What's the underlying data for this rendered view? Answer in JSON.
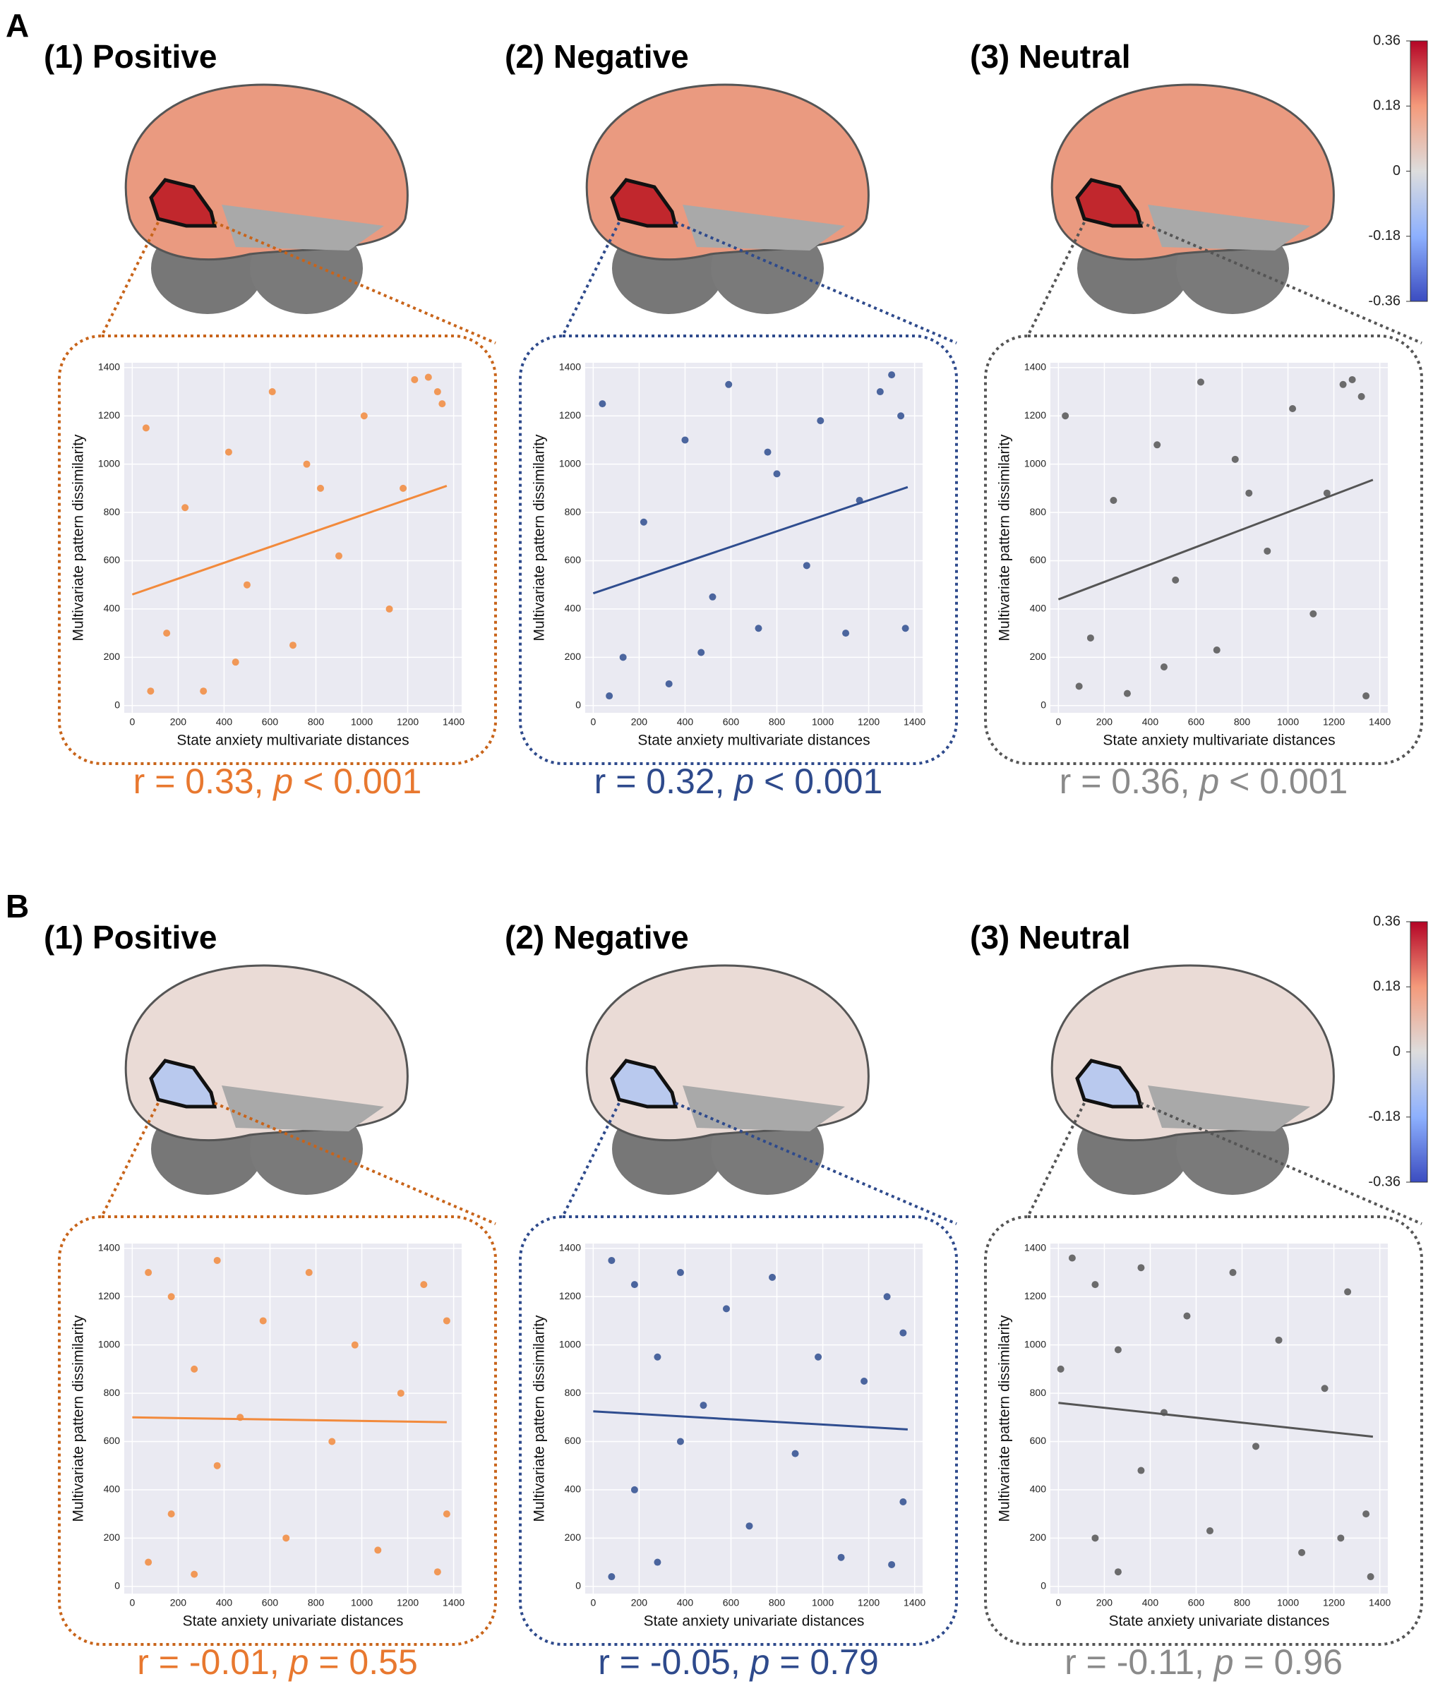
{
  "panels": [
    {
      "label": "A",
      "brain_color": "#ea9a80",
      "roi_color": "#c1272d",
      "colorbar": {
        "ylim": [
          -0.36,
          0.36
        ],
        "ticks": [
          0.36,
          0.18,
          0,
          -0.18,
          -0.36
        ]
      },
      "charts": [
        {
          "type": "scatter",
          "title": "(1) Positive",
          "xlabel": "State anxiety multivariate distances",
          "ylabel": "Multivariate pattern dissimilarity",
          "color": "#f28a3c",
          "frame_color": "#c8641a",
          "stat_color": "#e8782f",
          "stat": {
            "r": "r = 0.33, ",
            "p": "p",
            "rest": " < 0.001"
          },
          "xlim": [
            -35,
            1435
          ],
          "ylim": [
            -30,
            1420
          ],
          "xticks": [
            0,
            200,
            400,
            600,
            800,
            1000,
            1200,
            1400
          ],
          "yticks": [
            0,
            200,
            400,
            600,
            800,
            1000,
            1200,
            1400
          ],
          "x": [
            60,
            150,
            230,
            310,
            420,
            500,
            610,
            700,
            820,
            900,
            1010,
            1120,
            1230,
            1330,
            1350,
            80,
            450,
            760,
            1180,
            1290
          ],
          "y": [
            1150,
            300,
            820,
            60,
            1050,
            500,
            1300,
            250,
            900,
            620,
            1200,
            400,
            1350,
            1300,
            1250,
            60,
            180,
            1000,
            900,
            1360
          ],
          "fit": {
            "x": [
              0,
              1370
            ],
            "y": [
              460,
              910
            ]
          }
        },
        {
          "type": "scatter",
          "title": "(2) Negative",
          "xlabel": "State anxiety multivariate distances",
          "ylabel": "Multivariate pattern dissimilarity",
          "color": "#2f4d8f",
          "frame_color": "#2e4a8c",
          "stat_color": "#2e4a8c",
          "stat": {
            "r": "r = 0.32, ",
            "p": "p",
            "rest": " < 0.001"
          },
          "xlim": [
            -35,
            1435
          ],
          "ylim": [
            -30,
            1420
          ],
          "xticks": [
            0,
            200,
            400,
            600,
            800,
            1000,
            1200,
            1400
          ],
          "yticks": [
            0,
            200,
            400,
            600,
            800,
            1000,
            1200,
            1400
          ],
          "x": [
            40,
            130,
            220,
            330,
            400,
            520,
            590,
            720,
            800,
            930,
            990,
            1100,
            1250,
            1340,
            1360,
            70,
            470,
            760,
            1160,
            1300
          ],
          "y": [
            1250,
            200,
            760,
            90,
            1100,
            450,
            1330,
            320,
            960,
            580,
            1180,
            300,
            1300,
            1200,
            320,
            40,
            220,
            1050,
            850,
            1370
          ],
          "fit": {
            "x": [
              0,
              1370
            ],
            "y": [
              465,
              905
            ]
          }
        },
        {
          "type": "scatter",
          "title": "(3) Neutral",
          "xlabel": "State anxiety multivariate distances",
          "ylabel": "Multivariate pattern dissimilarity",
          "color": "#555555",
          "frame_color": "#555555",
          "stat_color": "#8a8a8a",
          "stat": {
            "r": "r = 0.36, ",
            "p": "p",
            "rest": " < 0.001"
          },
          "xlim": [
            -35,
            1435
          ],
          "ylim": [
            -30,
            1420
          ],
          "xticks": [
            0,
            200,
            400,
            600,
            800,
            1000,
            1200,
            1400
          ],
          "yticks": [
            0,
            200,
            400,
            600,
            800,
            1000,
            1200,
            1400
          ],
          "x": [
            30,
            140,
            240,
            300,
            430,
            510,
            620,
            690,
            830,
            910,
            1020,
            1110,
            1240,
            1320,
            1340,
            90,
            460,
            770,
            1170,
            1280
          ],
          "y": [
            1200,
            280,
            850,
            50,
            1080,
            520,
            1340,
            230,
            880,
            640,
            1230,
            380,
            1330,
            1280,
            40,
            80,
            160,
            1020,
            880,
            1350
          ],
          "fit": {
            "x": [
              0,
              1370
            ],
            "y": [
              440,
              935
            ]
          }
        }
      ]
    },
    {
      "label": "B",
      "brain_color": "#eadbd6",
      "roi_color": "#b9c9ee",
      "colorbar": {
        "ylim": [
          -0.36,
          0.36
        ],
        "ticks": [
          0.36,
          0.18,
          0,
          -0.18,
          -0.36
        ]
      },
      "charts": [
        {
          "type": "scatter",
          "title": "(1) Positive",
          "xlabel": "State anxiety univariate distances",
          "ylabel": "Multivariate pattern dissimilarity",
          "color": "#f28a3c",
          "frame_color": "#c8641a",
          "stat_color": "#e8782f",
          "stat": {
            "r": "r = -0.01, ",
            "p": "p",
            "rest": " = 0.55"
          },
          "xlim": [
            -35,
            1435
          ],
          "ylim": [
            -30,
            1420
          ],
          "xticks": [
            0,
            200,
            400,
            600,
            800,
            1000,
            1200,
            1400
          ],
          "yticks": [
            0,
            200,
            400,
            600,
            800,
            1000,
            1200,
            1400
          ],
          "x": [
            70,
            70,
            170,
            170,
            270,
            270,
            370,
            370,
            470,
            570,
            670,
            770,
            870,
            970,
            1070,
            1170,
            1270,
            1370,
            1370,
            1330
          ],
          "y": [
            1300,
            100,
            1200,
            300,
            900,
            50,
            1350,
            500,
            700,
            1100,
            200,
            1300,
            600,
            1000,
            150,
            800,
            1250,
            300,
            1100,
            60
          ],
          "fit": {
            "x": [
              0,
              1370
            ],
            "y": [
              700,
              680
            ]
          }
        },
        {
          "type": "scatter",
          "title": "(2) Negative",
          "xlabel": "State anxiety univariate distances",
          "ylabel": "Multivariate pattern dissimilarity",
          "color": "#2f4d8f",
          "frame_color": "#2e4a8c",
          "stat_color": "#2e4a8c",
          "stat": {
            "r": "r = -0.05, ",
            "p": "p",
            "rest": " = 0.79"
          },
          "xlim": [
            -35,
            1435
          ],
          "ylim": [
            -30,
            1420
          ],
          "xticks": [
            0,
            200,
            400,
            600,
            800,
            1000,
            1200,
            1400
          ],
          "yticks": [
            0,
            200,
            400,
            600,
            800,
            1000,
            1200,
            1400
          ],
          "x": [
            80,
            80,
            180,
            180,
            280,
            280,
            380,
            380,
            480,
            580,
            680,
            780,
            880,
            980,
            1080,
            1180,
            1280,
            1350,
            1350,
            1300
          ],
          "y": [
            1350,
            40,
            1250,
            400,
            950,
            100,
            1300,
            600,
            750,
            1150,
            250,
            1280,
            550,
            950,
            120,
            850,
            1200,
            350,
            1050,
            90
          ],
          "fit": {
            "x": [
              0,
              1370
            ],
            "y": [
              725,
              650
            ]
          }
        },
        {
          "type": "scatter",
          "title": "(3) Neutral",
          "xlabel": "State anxiety univariate distances",
          "ylabel": "Multivariate pattern dissimilarity",
          "color": "#555555",
          "frame_color": "#555555",
          "stat_color": "#8a8a8a",
          "stat": {
            "r": "r = -0.11, ",
            "p": "p",
            "rest": " = 0.96"
          },
          "xlim": [
            -35,
            1435
          ],
          "ylim": [
            -30,
            1420
          ],
          "xticks": [
            0,
            200,
            400,
            600,
            800,
            1000,
            1200,
            1400
          ],
          "yticks": [
            0,
            200,
            400,
            600,
            800,
            1000,
            1200,
            1400
          ],
          "x": [
            10,
            60,
            160,
            160,
            260,
            260,
            360,
            360,
            460,
            560,
            660,
            760,
            860,
            960,
            1060,
            1160,
            1260,
            1340,
            1360,
            1230
          ],
          "y": [
            900,
            1360,
            1250,
            200,
            980,
            60,
            1320,
            480,
            720,
            1120,
            230,
            1300,
            580,
            1020,
            140,
            820,
            1220,
            300,
            40,
            200
          ],
          "fit": {
            "x": [
              0,
              1370
            ],
            "y": [
              760,
              620
            ]
          }
        }
      ]
    }
  ]
}
